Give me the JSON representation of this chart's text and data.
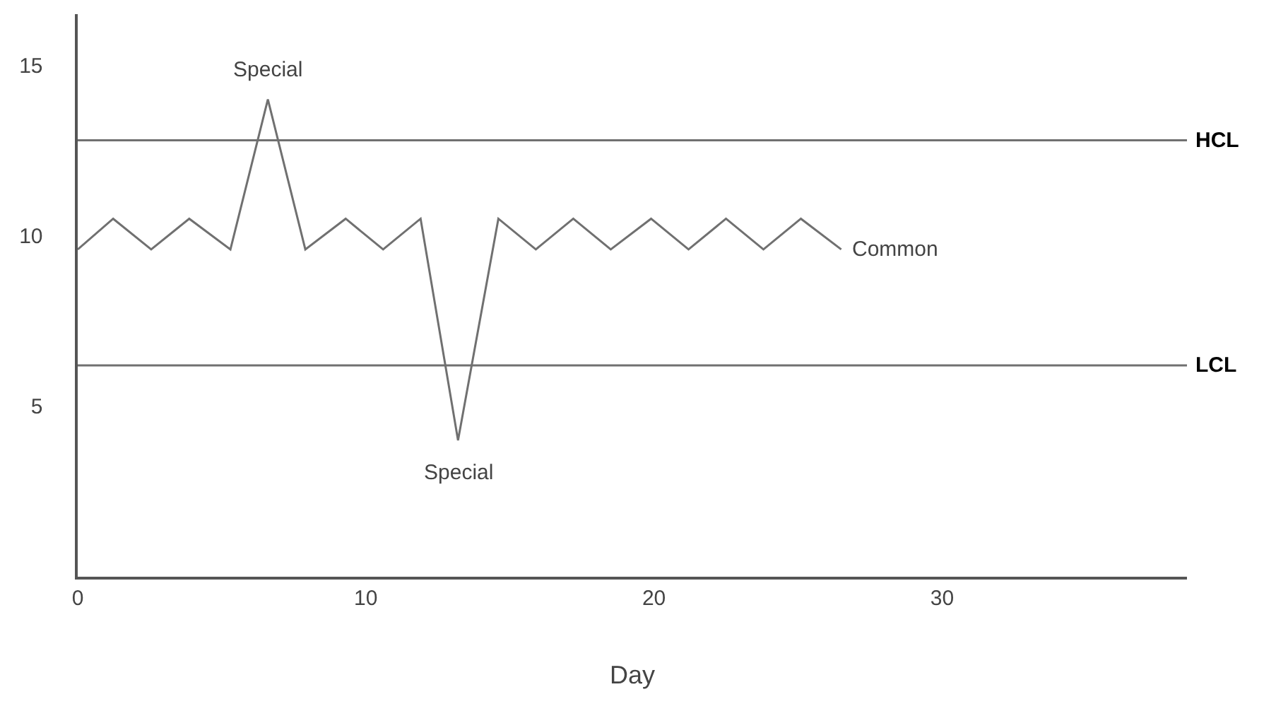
{
  "chart_data": {
    "type": "line",
    "xlabel": "Day",
    "x": [
      0,
      1.23,
      2.55,
      3.87,
      5.3,
      6.6,
      7.9,
      9.3,
      10.6,
      11.9,
      13.2,
      14.6,
      15.9,
      17.2,
      18.5,
      19.9,
      21.2,
      22.5,
      23.8,
      25.1,
      26.5
    ],
    "series": [
      {
        "color": "#707070",
        "values": [
          9.6,
          10.5,
          9.6,
          10.5,
          9.6,
          14.0,
          9.6,
          10.5,
          9.6,
          10.5,
          4.0,
          10.5,
          9.6,
          10.5,
          9.6,
          10.5,
          9.6,
          10.5,
          9.6,
          10.5,
          9.6
        ]
      }
    ],
    "xlim": [
      0,
      38.5
    ],
    "ylim": [
      0,
      16.5
    ],
    "xticks": [
      0,
      10,
      20,
      30
    ],
    "yticks": [
      5,
      10,
      15
    ],
    "ref_lines": [
      {
        "axis": "y",
        "value": 12.8,
        "label": "HCL",
        "color": "#707070"
      },
      {
        "axis": "y",
        "value": 6.2,
        "label": "LCL",
        "color": "#707070"
      }
    ],
    "annotations": [
      {
        "text": "Special",
        "x": 6.6,
        "y": 14.0
      },
      {
        "text": "Special",
        "x": 13.2,
        "y": 4.0
      },
      {
        "text": "Common",
        "x": 26.5,
        "y": 9.6
      }
    ],
    "marker": "none",
    "line_style": "solid"
  }
}
